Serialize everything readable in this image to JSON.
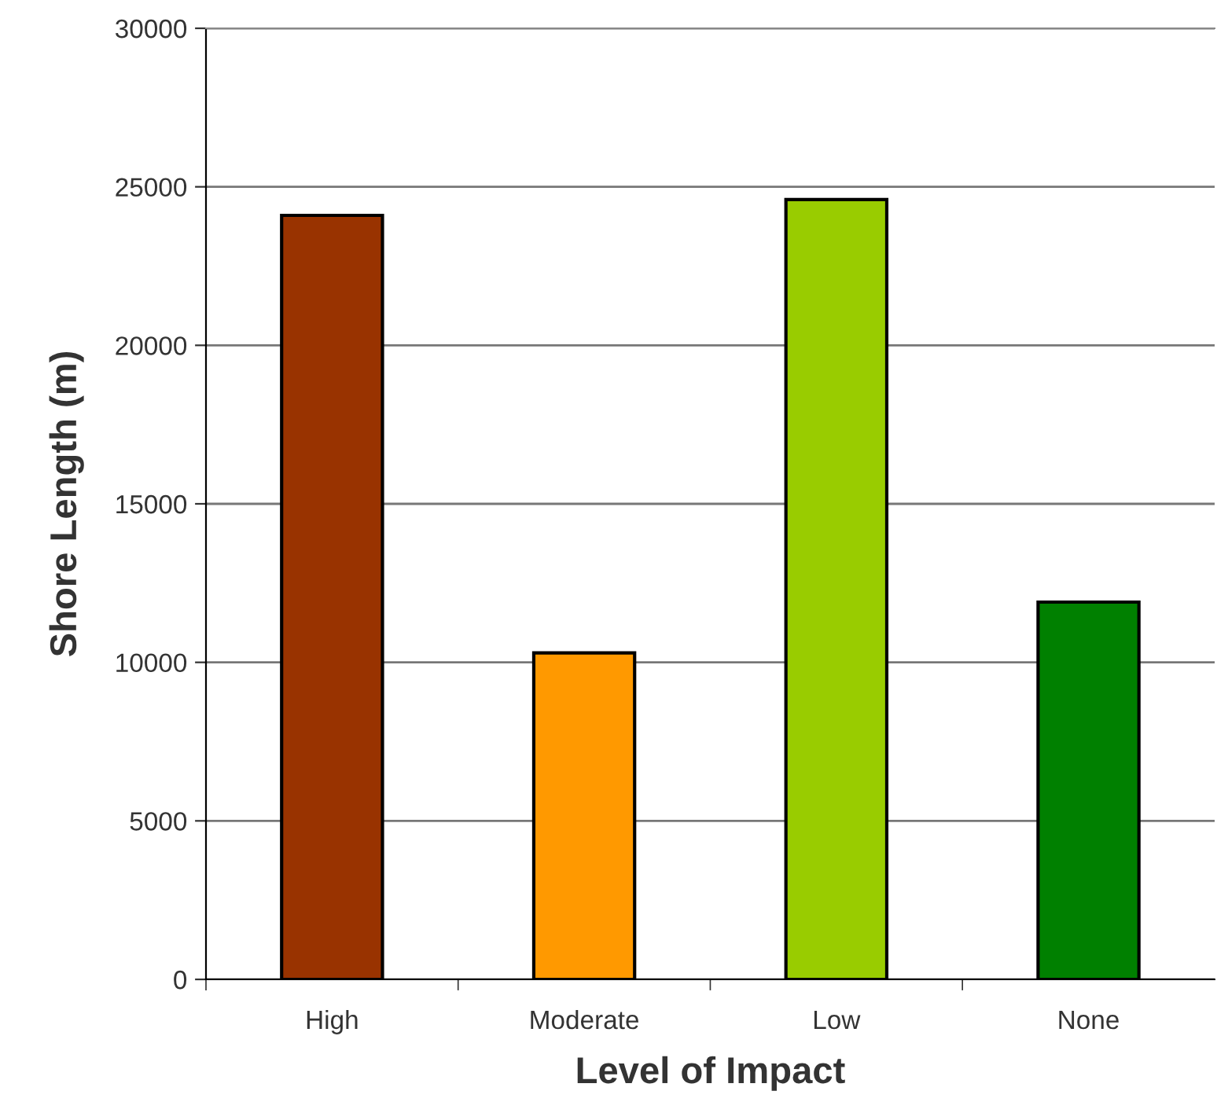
{
  "chart_data": {
    "type": "bar",
    "xlabel": "Level of Impact",
    "ylabel": "Shore Length (m)",
    "categories": [
      "High",
      "Moderate",
      "Low",
      "None"
    ],
    "values": [
      24100,
      10300,
      24600,
      11900
    ],
    "colors": [
      "#993300",
      "#ff9900",
      "#99cc00",
      "#008000"
    ],
    "ylim": [
      0,
      30000
    ],
    "yticks": [
      0,
      5000,
      10000,
      15000,
      20000,
      25000,
      30000
    ],
    "grid": "y"
  }
}
